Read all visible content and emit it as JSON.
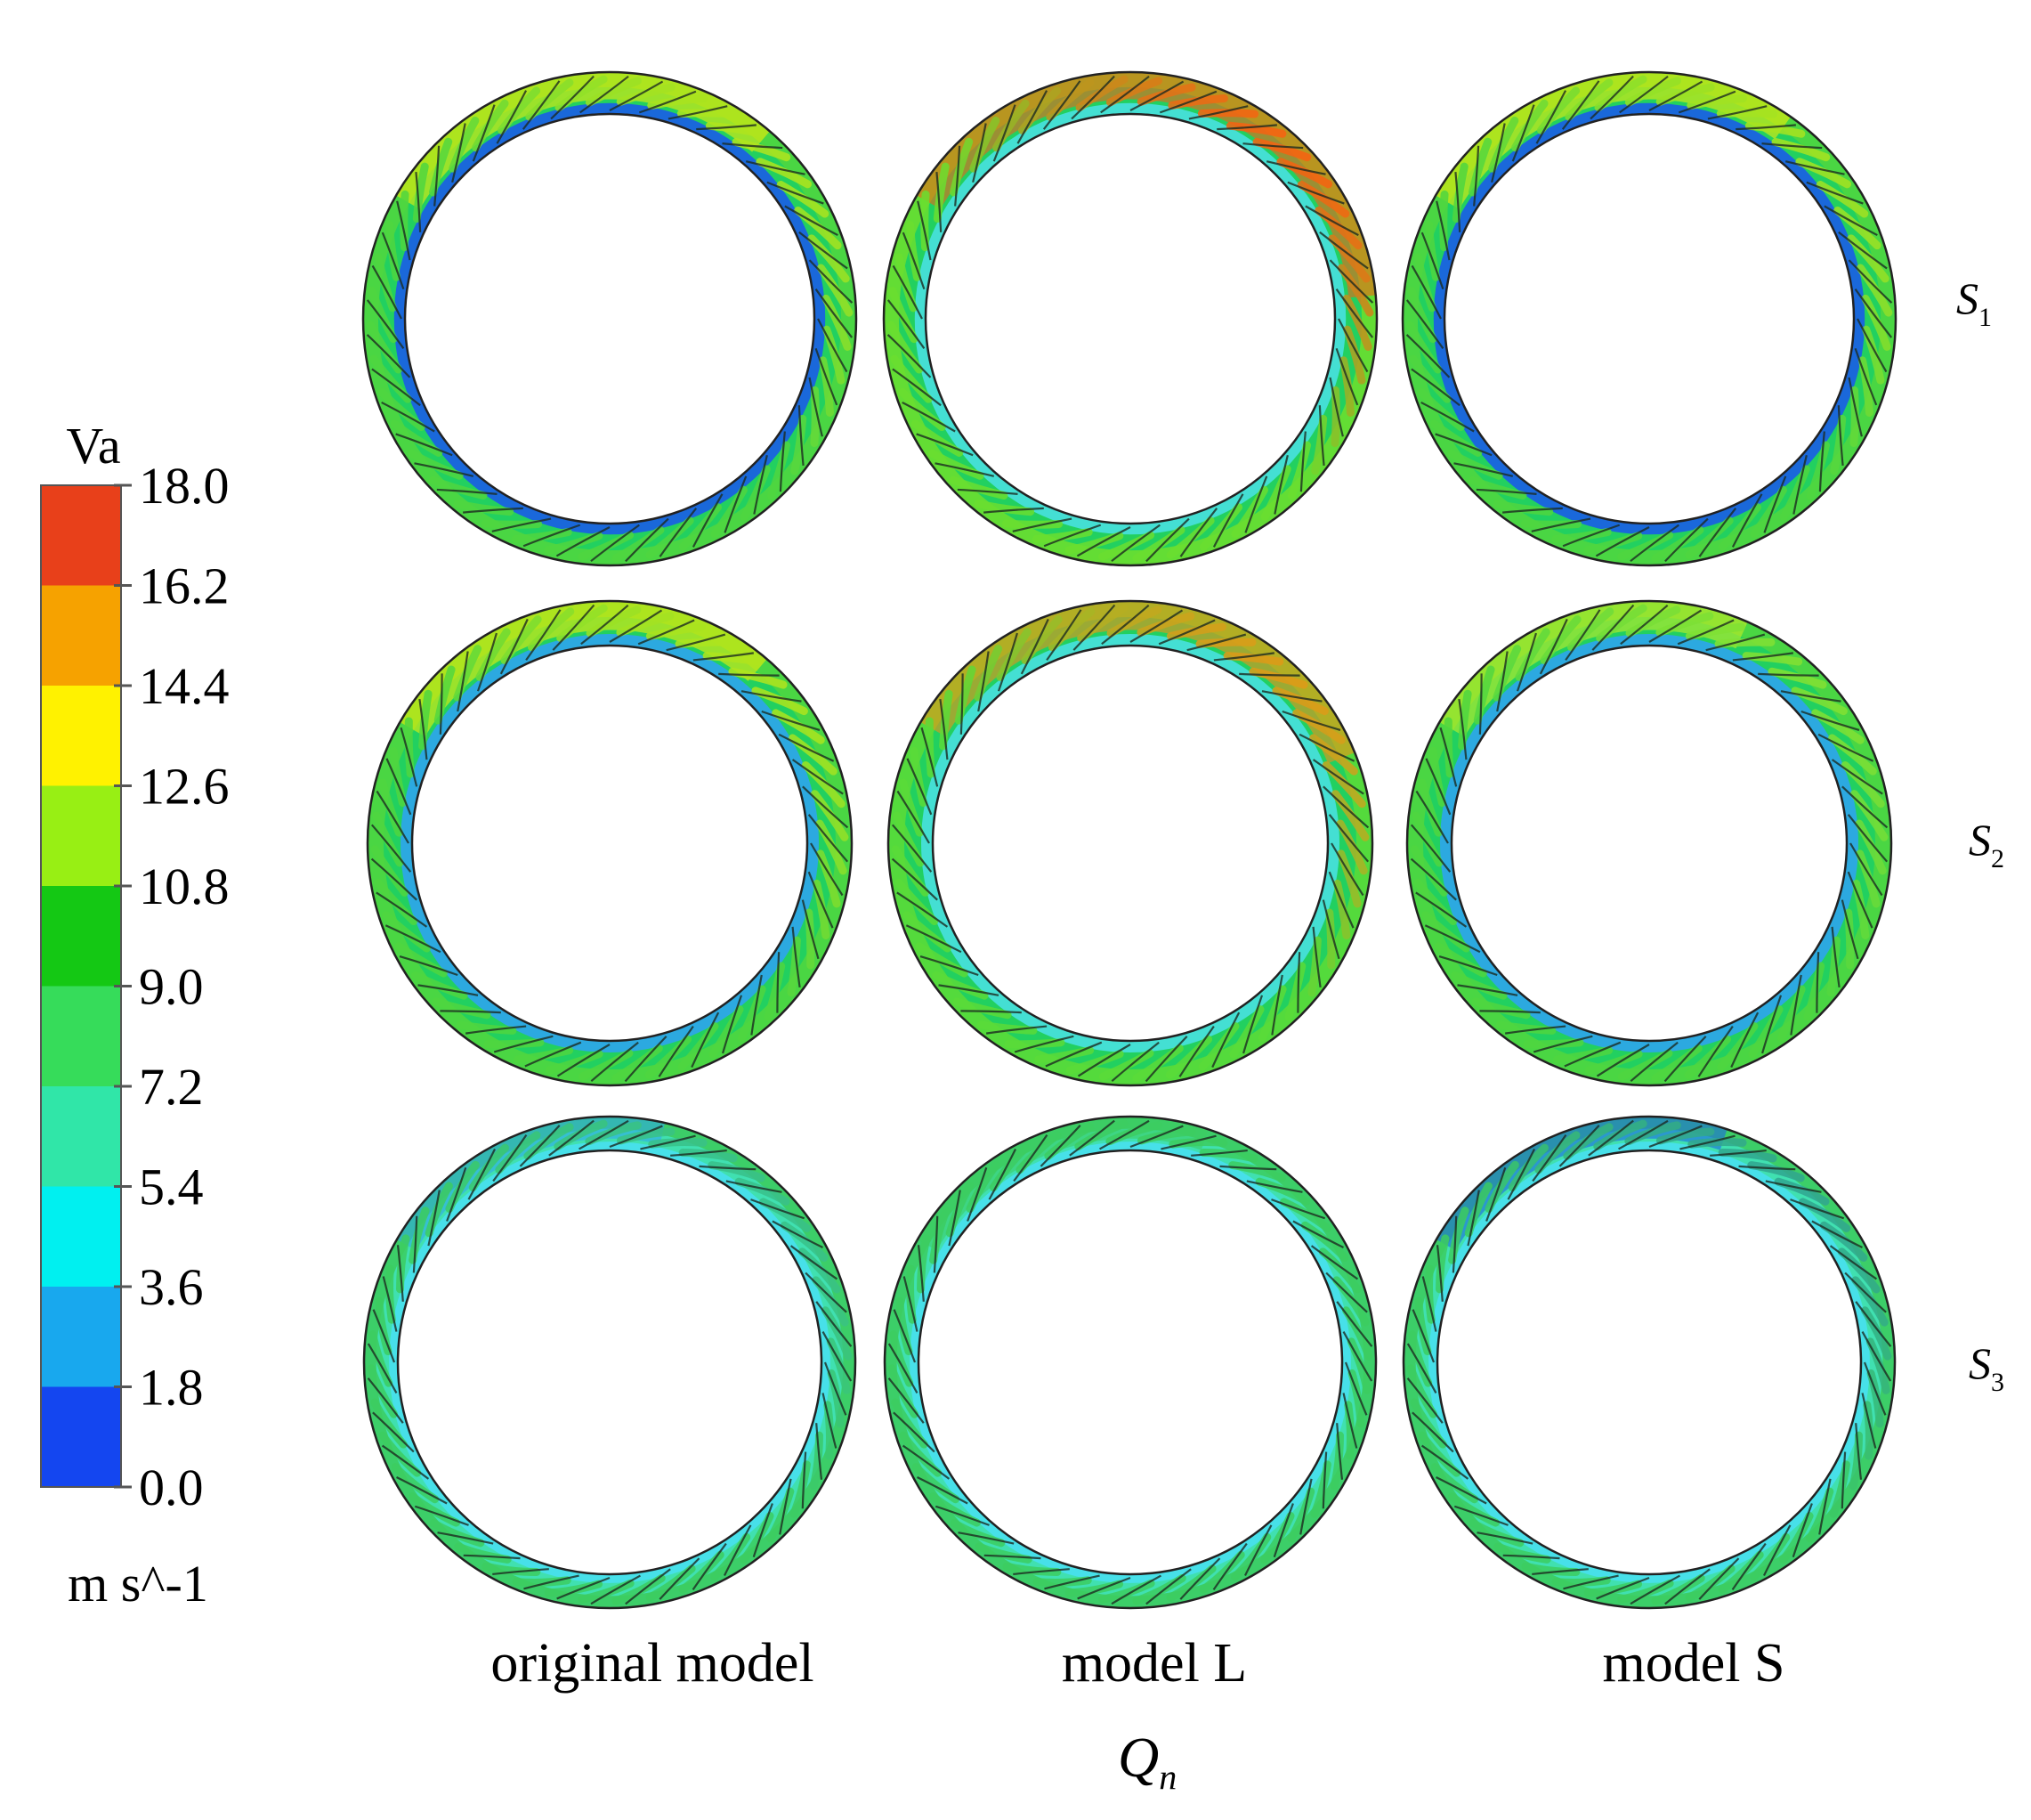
{
  "colorbar": {
    "variable": "Va",
    "unit": "m s^-1",
    "ticks": [
      "18.0",
      "16.2",
      "14.4",
      "12.6",
      "10.8",
      "9.0",
      "7.2",
      "5.4",
      "3.6",
      "1.8",
      "0.0"
    ],
    "colors": [
      "#e8401a",
      "#f6a200",
      "#fff200",
      "#98ef14",
      "#14c814",
      "#36dc5a",
      "#30e6a8",
      "#00f0f0",
      "#18a8ee",
      "#1446f0"
    ]
  },
  "columns": [
    "original model",
    "model L",
    "model S"
  ],
  "rows": [
    {
      "label": "S",
      "sub": "1"
    },
    {
      "label": "S",
      "sub": "2"
    },
    {
      "label": "S",
      "sub": "3"
    }
  ],
  "condition": {
    "label": "Q",
    "sub": "n"
  },
  "panels": [
    {
      "row": 0,
      "col": 0,
      "base": "#22d060",
      "outer": "#4fd640",
      "inner_band": "#1a5ce8",
      "hot": "#fff000",
      "hot_level": 0.55
    },
    {
      "row": 0,
      "col": 1,
      "base": "#22d060",
      "outer": "#6ade30",
      "inner_band": "#48e0e0",
      "hot": "#ff5a10",
      "hot_level": 0.95
    },
    {
      "row": 0,
      "col": 2,
      "base": "#22d060",
      "outer": "#4fd640",
      "inner_band": "#1a5ce8",
      "hot": "#fff000",
      "hot_level": 0.5
    },
    {
      "row": 1,
      "col": 0,
      "base": "#22d060",
      "outer": "#4fd640",
      "inner_band": "#2ea4ee",
      "hot": "#fff000",
      "hot_level": 0.55
    },
    {
      "row": 1,
      "col": 1,
      "base": "#22d060",
      "outer": "#5ada38",
      "inner_band": "#48e0e0",
      "hot": "#ff8a10",
      "hot_level": 0.8
    },
    {
      "row": 1,
      "col": 2,
      "base": "#22d060",
      "outer": "#4fd640",
      "inner_band": "#2ea4ee",
      "hot": "#d4f020",
      "hot_level": 0.4
    },
    {
      "row": 2,
      "col": 0,
      "base": "#40e0b0",
      "outer": "#3ccc60",
      "inner_band": "#48e0f0",
      "hot": "#2ea4ee",
      "hot_level": 0.3
    },
    {
      "row": 2,
      "col": 1,
      "base": "#40e0b0",
      "outer": "#3ccc60",
      "inner_band": "#48e0f0",
      "hot": "#3ccc60",
      "hot_level": 0.35
    },
    {
      "row": 2,
      "col": 2,
      "base": "#40e0b0",
      "outer": "#3ccc60",
      "inner_band": "#48e0f0",
      "hot": "#1a5ce8",
      "hot_level": 0.35
    }
  ]
}
